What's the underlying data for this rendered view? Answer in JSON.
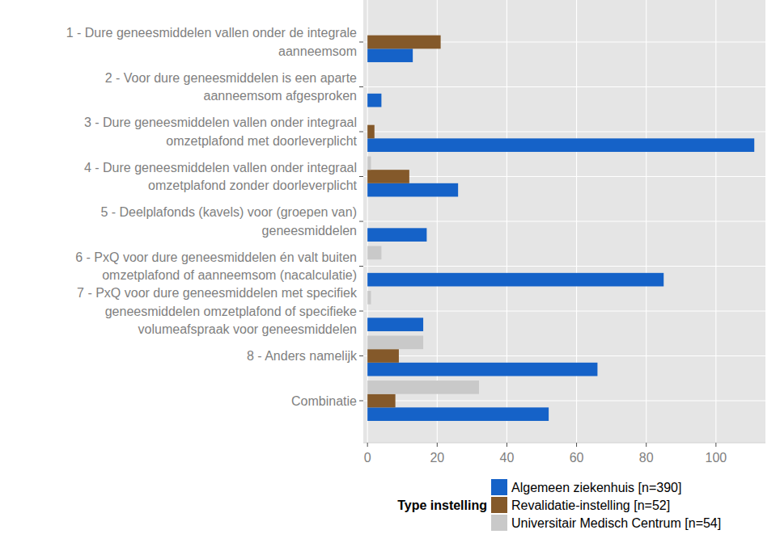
{
  "chart_data": {
    "type": "bar",
    "orientation": "horizontal",
    "categories": [
      "1 - Dure geneesmiddelen vallen onder de integrale\naanneemsom",
      "2 - Voor dure geneesmiddelen is een aparte\naanneemsom afgesproken",
      "3 - Dure geneesmiddelen vallen onder integraal\nomzetplafond met doorleverplicht",
      "4 - Dure geneesmiddelen vallen onder integraal\nomzetplafond zonder doorleverplicht",
      "5 - Deelplafonds (kavels) voor (groepen van)\ngeneesmiddelen",
      "6 - PxQ voor dure geneesmiddelen én valt buiten\nomzetplafond of aanneemsom (nacalculatie)",
      "7 - PxQ voor dure geneesmiddelen met specifiek\ngeneesmiddelen omzetplafond of specifieke\nvolumeafspraak voor geneesmiddelen",
      "8 - Anders namelijk",
      "Combinatie"
    ],
    "series": [
      {
        "name": "Algemeen ziekenhuis [n=390]",
        "color": "#1562c8",
        "values": [
          13,
          4,
          111,
          26,
          17,
          85,
          16,
          66,
          52
        ]
      },
      {
        "name": "Revalidatie-instelling [n=52]",
        "color": "#84592a",
        "values": [
          21,
          0,
          2,
          12,
          0,
          0,
          0,
          9,
          8
        ]
      },
      {
        "name": "Universitair Medisch Centrum [n=54]",
        "color": "#c9c9c9",
        "values": [
          0,
          0,
          0,
          1,
          0,
          4,
          1,
          16,
          32
        ]
      }
    ],
    "legend_title": "Type instelling",
    "legend": "bottom",
    "xlim": [
      -1.2,
      114.2
    ],
    "xticks": [
      0,
      20,
      40,
      60,
      80,
      100
    ],
    "grid": true
  }
}
